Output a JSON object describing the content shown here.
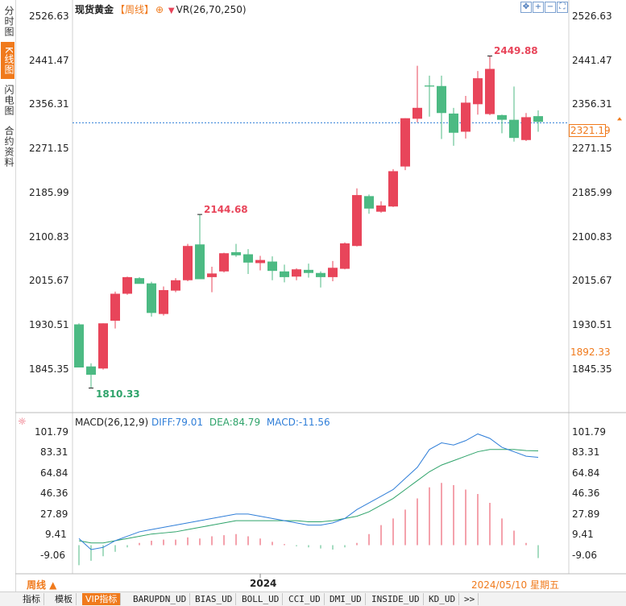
{
  "sidebar": {
    "tabs": [
      {
        "label": "分时图",
        "active": false
      },
      {
        "label": "K线图",
        "active": true
      },
      {
        "label": "闪电图",
        "active": false
      },
      {
        "label": "合约资料",
        "active": false
      }
    ]
  },
  "header": {
    "instrument": "现货黄金",
    "period": "【周线】",
    "add_symbol": "⊕",
    "indicator_arrow": "▼",
    "indicator": "VR(26,70,250)"
  },
  "macd_header": {
    "name": "MACD(26,12,9)",
    "diff": "DIFF:79.01",
    "dea": "DEA:84.79",
    "macd": "MACD:-11.56"
  },
  "colors": {
    "up": "#e8455a",
    "down": "#4cba83",
    "accent": "#f07a1c",
    "diff_line": "#2f7ed8",
    "dea_line": "#2ea36a"
  },
  "price_axis": {
    "ticks": [
      "2526.63",
      "2441.47",
      "2356.31",
      "2271.15",
      "2185.99",
      "2100.83",
      "2015.67",
      "1930.51",
      "1845.35"
    ],
    "current_price": "2321.19",
    "highlight_price": "1892.33"
  },
  "macd_axis": {
    "ticks": [
      "101.79",
      "83.31",
      "64.84",
      "46.36",
      "27.89",
      "9.41",
      "-9.06"
    ]
  },
  "bottom_axis": {
    "period_selector": "周线 ▲",
    "year": "2024",
    "date": "2024/05/10 星期五"
  },
  "annotations": {
    "low": "1810.33",
    "mid_high": "2144.68",
    "high": "2449.88"
  },
  "bottom_tabs": [
    "指标",
    "模板",
    "VIP指标",
    "BARUPDN_UD",
    "BIAS_UD",
    "BOLL_UD",
    "CCI_UD",
    "DMI_UD",
    "INSIDE_UD",
    "KD_UD",
    ">>"
  ],
  "chart_data": {
    "type": "candlestick",
    "title": "现货黄金 周线",
    "price_range": [
      1800,
      2530
    ],
    "candles": [
      {
        "o": 1933,
        "h": 1935,
        "l": 1852,
        "c": 1850
      },
      {
        "o": 1852,
        "h": 1858,
        "l": 1810.33,
        "c": 1836
      },
      {
        "o": 1848,
        "h": 1935,
        "l": 1846,
        "c": 1935
      },
      {
        "o": 1940,
        "h": 1996,
        "l": 1925,
        "c": 1992
      },
      {
        "o": 1992,
        "h": 2025,
        "l": 1990,
        "c": 2024
      },
      {
        "o": 2022,
        "h": 2024,
        "l": 2012,
        "c": 2011
      },
      {
        "o": 2012,
        "h": 2015,
        "l": 1948,
        "c": 1955
      },
      {
        "o": 1953,
        "h": 2006,
        "l": 1950,
        "c": 1999
      },
      {
        "o": 1998,
        "h": 2022,
        "l": 1995,
        "c": 2018
      },
      {
        "o": 2018,
        "h": 2088,
        "l": 2016,
        "c": 2084
      },
      {
        "o": 2087,
        "h": 2144.68,
        "l": 2025,
        "c": 2020
      },
      {
        "o": 2024,
        "h": 2044,
        "l": 1995,
        "c": 2031
      },
      {
        "o": 2035,
        "h": 2071,
        "l": 2033,
        "c": 2070
      },
      {
        "o": 2072,
        "h": 2088,
        "l": 2063,
        "c": 2066
      },
      {
        "o": 2068,
        "h": 2078,
        "l": 2030,
        "c": 2052
      },
      {
        "o": 2051,
        "h": 2065,
        "l": 2037,
        "c": 2057
      },
      {
        "o": 2054,
        "h": 2064,
        "l": 2018,
        "c": 2036
      },
      {
        "o": 2035,
        "h": 2048,
        "l": 2014,
        "c": 2024
      },
      {
        "o": 2025,
        "h": 2041,
        "l": 2018,
        "c": 2039
      },
      {
        "o": 2038,
        "h": 2050,
        "l": 2023,
        "c": 2032
      },
      {
        "o": 2032,
        "h": 2035,
        "l": 2004,
        "c": 2024
      },
      {
        "o": 2024,
        "h": 2055,
        "l": 2016,
        "c": 2042
      },
      {
        "o": 2040,
        "h": 2091,
        "l": 2039,
        "c": 2089
      },
      {
        "o": 2084,
        "h": 2195,
        "l": 2083,
        "c": 2182
      },
      {
        "o": 2180,
        "h": 2183,
        "l": 2146,
        "c": 2156
      },
      {
        "o": 2150,
        "h": 2170,
        "l": 2148,
        "c": 2162
      },
      {
        "o": 2160,
        "h": 2232,
        "l": 2159,
        "c": 2228
      },
      {
        "o": 2237,
        "h": 2330,
        "l": 2230,
        "c": 2330
      },
      {
        "o": 2329,
        "h": 2431,
        "l": 2322,
        "c": 2350
      },
      {
        "o": 2393,
        "h": 2412,
        "l": 2333,
        "c": 2391
      },
      {
        "o": 2392,
        "h": 2412,
        "l": 2290,
        "c": 2340
      },
      {
        "o": 2339,
        "h": 2350,
        "l": 2277,
        "c": 2302
      },
      {
        "o": 2304,
        "h": 2373,
        "l": 2291,
        "c": 2360
      },
      {
        "o": 2357,
        "h": 2421,
        "l": 2337,
        "c": 2407
      },
      {
        "o": 2338,
        "h": 2449.88,
        "l": 2336,
        "c": 2425
      },
      {
        "o": 2336,
        "h": 2337,
        "l": 2301,
        "c": 2327
      },
      {
        "o": 2327,
        "h": 2391,
        "l": 2285,
        "c": 2292
      },
      {
        "o": 2288,
        "h": 2340,
        "l": 2286,
        "c": 2332
      },
      {
        "o": 2334,
        "h": 2345,
        "l": 2304,
        "c": 2323
      }
    ],
    "macd_range": [
      -20,
      110
    ],
    "macd_hist": [
      -18,
      -14,
      -10,
      -6,
      -2,
      2,
      4,
      5,
      5,
      7,
      6,
      8,
      9,
      10,
      8,
      6,
      3,
      1,
      -1,
      -2,
      -3,
      -4,
      -2,
      2,
      10,
      18,
      24,
      32,
      42,
      52,
      56,
      54,
      50,
      46,
      38,
      24,
      13,
      2,
      -11.56
    ],
    "diff": [
      6,
      -4,
      -2,
      4,
      8,
      12,
      14,
      16,
      18,
      20,
      22,
      24,
      26,
      28,
      28,
      26,
      24,
      22,
      20,
      18,
      18,
      20,
      24,
      32,
      38,
      44,
      50,
      60,
      70,
      86,
      92,
      90,
      94,
      100,
      96,
      88,
      84,
      80,
      79.01
    ],
    "dea": [
      4,
      2,
      2,
      4,
      6,
      8,
      10,
      11,
      12,
      14,
      16,
      18,
      20,
      22,
      22,
      22,
      22,
      22,
      22,
      21,
      21,
      22,
      24,
      26,
      30,
      36,
      42,
      50,
      58,
      66,
      72,
      76,
      80,
      84,
      86,
      86,
      86,
      85,
      84.79
    ]
  }
}
